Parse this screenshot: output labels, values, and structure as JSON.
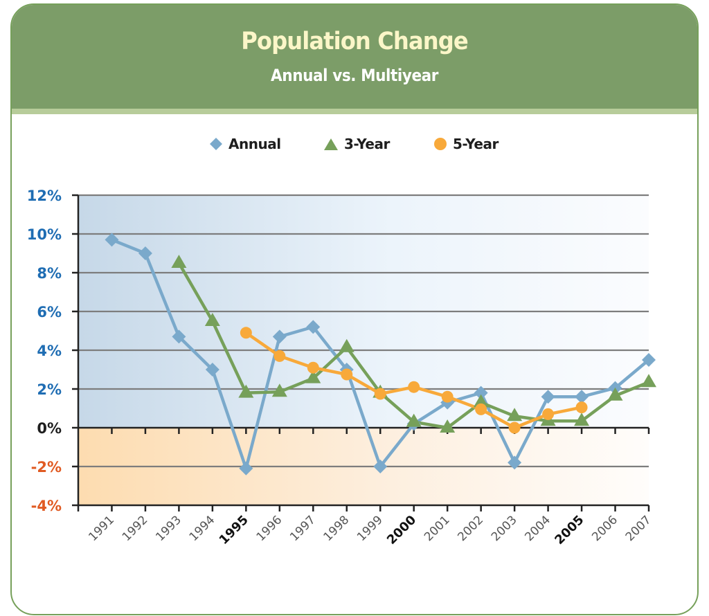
{
  "header": {
    "title": "Population Change",
    "subtitle": "Annual vs. Multiyear"
  },
  "colors": {
    "header_bg": "#7c9d68",
    "title_text": "#fbf6c8",
    "positive_label": "#1f6db3",
    "negative_label": "#e05a22",
    "zero_label": "#1e1e1e",
    "annual": "#7aa9cb",
    "three_year": "#76a05a",
    "five_year": "#f8a93a"
  },
  "chart_data": {
    "type": "line",
    "title": "Population Change",
    "subtitle": "Annual vs. Multiyear",
    "xlabel": "",
    "ylabel": "",
    "x": [
      1991,
      1992,
      1993,
      1994,
      1995,
      1996,
      1997,
      1998,
      1999,
      2000,
      2001,
      2002,
      2003,
      2004,
      2005,
      2006,
      2007
    ],
    "x_tick_labels": [
      "1991",
      "1992",
      "1993",
      "1994",
      "1995",
      "1996",
      "1997",
      "1998",
      "1999",
      "2000",
      "2001",
      "2002",
      "2003",
      "2004",
      "2005",
      "2006",
      "2007"
    ],
    "x_tick_emphasized": [
      "1995",
      "2000",
      "2005"
    ],
    "ylim": [
      -4,
      12
    ],
    "y_ticks": [
      12,
      10,
      8,
      6,
      4,
      2,
      0,
      -2,
      -4
    ],
    "y_tick_labels": [
      "12%",
      "10%",
      "8%",
      "6%",
      "4%",
      "2%",
      "0%",
      "-2%",
      "-4%"
    ],
    "grid": true,
    "legend_position": "top-center",
    "legend": [
      "Annual",
      "3-Year",
      "5-Year"
    ],
    "series": [
      {
        "name": "Annual",
        "marker": "diamond",
        "values": [
          9.7,
          9.0,
          4.7,
          3.0,
          -2.1,
          4.7,
          5.2,
          3.0,
          -2.0,
          0.2,
          1.3,
          1.8,
          -1.8,
          1.6,
          1.6,
          2.05,
          3.5
        ]
      },
      {
        "name": "3-Year",
        "marker": "triangle",
        "values": [
          null,
          null,
          8.5,
          5.5,
          1.8,
          1.85,
          2.55,
          4.15,
          1.8,
          0.3,
          0.0,
          1.3,
          0.6,
          0.35,
          0.35,
          1.65,
          2.35
        ]
      },
      {
        "name": "5-Year",
        "marker": "circle",
        "values": [
          null,
          null,
          null,
          null,
          4.9,
          3.7,
          3.1,
          2.75,
          1.75,
          2.1,
          1.6,
          0.95,
          0.0,
          0.7,
          1.05,
          null,
          null
        ]
      }
    ]
  }
}
